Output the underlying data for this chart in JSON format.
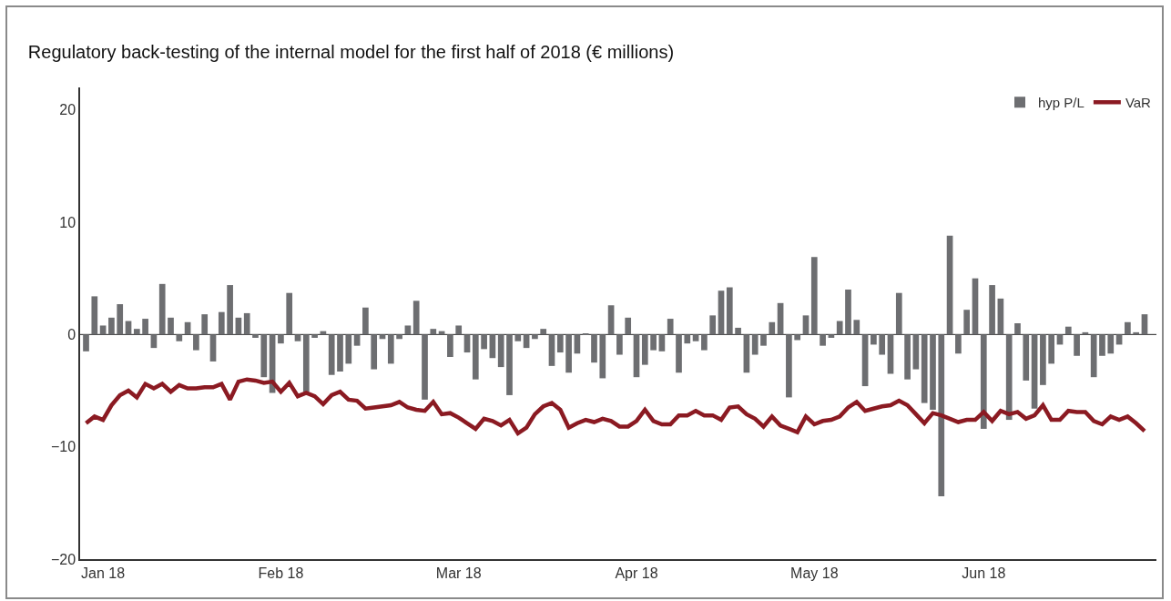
{
  "chart_data": {
    "type": "bar",
    "title": "Regulatory back-testing of the internal model for the first half of 2018 (€ millions)",
    "categories": [
      null,
      null,
      "Jan 18",
      null,
      null,
      null,
      null,
      null,
      null,
      null,
      null,
      null,
      null,
      null,
      null,
      null,
      null,
      null,
      null,
      null,
      null,
      null,
      null,
      "Feb 18",
      null,
      null,
      null,
      null,
      null,
      null,
      null,
      null,
      null,
      null,
      null,
      null,
      null,
      null,
      null,
      null,
      null,
      null,
      null,
      null,
      "Mar 18",
      null,
      null,
      null,
      null,
      null,
      null,
      null,
      null,
      null,
      null,
      null,
      null,
      null,
      null,
      null,
      null,
      null,
      null,
      null,
      null,
      "Apr 18",
      null,
      null,
      null,
      null,
      null,
      null,
      null,
      null,
      null,
      null,
      null,
      null,
      null,
      null,
      null,
      null,
      null,
      null,
      null,
      null,
      "May 18",
      null,
      null,
      null,
      null,
      null,
      null,
      null,
      null,
      null,
      null,
      null,
      null,
      null,
      null,
      null,
      null,
      null,
      null,
      null,
      "Jun 18",
      null,
      null,
      null,
      null,
      null,
      null,
      null,
      null,
      null,
      null,
      null,
      null,
      null,
      null,
      null,
      null,
      null,
      null,
      null
    ],
    "series": [
      {
        "name": "hyp P/L",
        "color": "#6d6e71",
        "values": [
          -1.5,
          3.4,
          0.8,
          1.5,
          2.7,
          1.2,
          0.5,
          1.4,
          -1.2,
          4.5,
          1.5,
          -0.6,
          1.1,
          -1.4,
          1.8,
          -2.4,
          2.0,
          4.4,
          1.5,
          1.9,
          -0.3,
          -3.8,
          -5.2,
          -0.8,
          3.7,
          -0.6,
          -5.1,
          -0.3,
          0.3,
          -3.6,
          -3.3,
          -2.6,
          -1.0,
          2.4,
          -3.1,
          -0.4,
          -2.6,
          -0.4,
          0.8,
          3.0,
          -5.8,
          0.5,
          0.3,
          -2.0,
          0.8,
          -1.6,
          -4.0,
          -1.3,
          -2.1,
          -2.9,
          -5.4,
          -0.6,
          -1.2,
          -0.4,
          0.5,
          -2.8,
          -1.6,
          -3.4,
          -1.7,
          0.1,
          -2.5,
          -3.9,
          2.6,
          -1.8,
          1.5,
          -3.8,
          -2.7,
          -1.4,
          -1.5,
          1.4,
          -3.4,
          -0.8,
          -0.6,
          -1.4,
          1.7,
          3.9,
          4.2,
          0.6,
          -3.4,
          -1.8,
          -1.0,
          1.1,
          2.8,
          -5.6,
          -0.5,
          1.7,
          6.9,
          -1.0,
          -0.3,
          1.2,
          4.0,
          1.3,
          -4.6,
          -0.9,
          -1.8,
          -3.5,
          3.7,
          -4.0,
          -3.1,
          -6.1,
          -6.7,
          -14.4,
          8.8,
          -1.7,
          2.2,
          5.0,
          -8.4,
          4.4,
          3.2,
          -7.6,
          1.0,
          -4.1,
          -6.6,
          -4.5,
          -2.6,
          -0.9,
          0.7,
          -1.9,
          0.2,
          -3.8,
          -1.9,
          -1.7,
          -0.9,
          1.1,
          0.2,
          1.8
        ]
      },
      {
        "name": "VaR",
        "type": "line",
        "color": "#8b1a22",
        "values": [
          -7.9,
          -7.3,
          -7.6,
          -6.3,
          -5.4,
          -5.0,
          -5.6,
          -4.4,
          -4.8,
          -4.4,
          -5.1,
          -4.5,
          -4.8,
          -4.8,
          -4.7,
          -4.7,
          -4.4,
          -5.8,
          -4.2,
          -4.0,
          -4.1,
          -4.3,
          -4.2,
          -5.1,
          -4.3,
          -5.5,
          -5.2,
          -5.5,
          -6.2,
          -5.4,
          -5.1,
          -5.8,
          -5.9,
          -6.6,
          -6.5,
          -6.4,
          -6.3,
          -6.0,
          -6.5,
          -6.7,
          -6.8,
          -6.0,
          -7.1,
          -7.0,
          -7.4,
          -7.9,
          -8.4,
          -7.5,
          -7.7,
          -8.1,
          -7.6,
          -8.8,
          -8.3,
          -7.1,
          -6.4,
          -6.1,
          -6.7,
          -8.3,
          -7.9,
          -7.6,
          -7.8,
          -7.5,
          -7.7,
          -8.2,
          -8.2,
          -7.7,
          -6.7,
          -7.7,
          -8.0,
          -8.0,
          -7.2,
          -7.2,
          -6.8,
          -7.2,
          -7.2,
          -7.6,
          -6.5,
          -6.4,
          -7.1,
          -7.5,
          -8.2,
          -7.3,
          -8.1,
          -8.4,
          -8.7,
          -7.3,
          -8.0,
          -7.7,
          -7.6,
          -7.3,
          -6.5,
          -6.0,
          -6.8,
          -6.6,
          -6.4,
          -6.3,
          -5.9,
          -6.3,
          -7.1,
          -7.9,
          -7.0,
          -7.2,
          -7.5,
          -7.8,
          -7.6,
          -7.6,
          -6.9,
          -7.7,
          -6.8,
          -7.1,
          -6.9,
          -7.5,
          -7.2,
          -6.3,
          -7.6,
          -7.6,
          -6.8,
          -6.9,
          -6.9,
          -7.7,
          -8.0,
          -7.3,
          -7.6,
          -7.3,
          -7.9,
          -8.6
        ]
      }
    ],
    "ylim": [
      -20,
      22
    ],
    "yticks": [
      {
        "value": -20,
        "label": "−20"
      },
      {
        "value": -10,
        "label": "−10"
      },
      0,
      10,
      20
    ],
    "ref_lines": [
      {
        "axis": "y",
        "value": 0,
        "color": "#222222"
      }
    ],
    "grid": false,
    "legend": "top right"
  }
}
